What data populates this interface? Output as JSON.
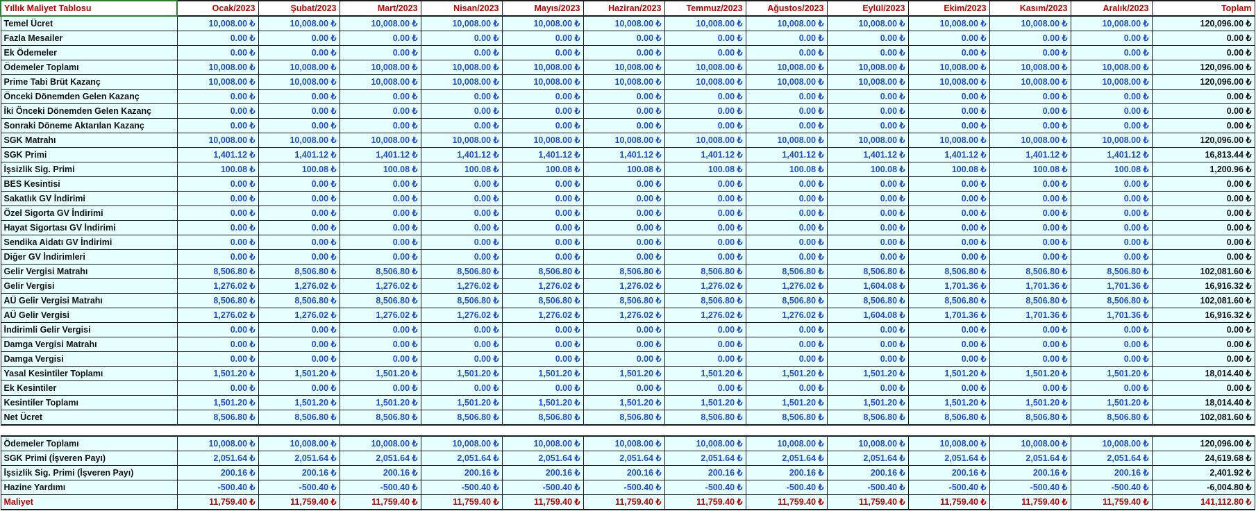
{
  "table": {
    "title": "Yıllık Maliyet Tablosu",
    "months": [
      "Ocak/2023",
      "Şubat/2023",
      "Mart/2023",
      "Nisan/2023",
      "Mayıs/2023",
      "Haziran/2023",
      "Temmuz/2023",
      "Ağustos/2023",
      "Eylül/2023",
      "Ekim/2023",
      "Kasım/2023",
      "Aralık/2023"
    ],
    "total_header": "Toplam",
    "rows": [
      {
        "label": "Temel Ücret",
        "values": [
          "10,008.00 ₺",
          "10,008.00 ₺",
          "10,008.00 ₺",
          "10,008.00 ₺",
          "10,008.00 ₺",
          "10,008.00 ₺",
          "10,008.00 ₺",
          "10,008.00 ₺",
          "10,008.00 ₺",
          "10,008.00 ₺",
          "10,008.00 ₺",
          "10,008.00 ₺"
        ],
        "total": "120,096.00 ₺"
      },
      {
        "label": "Fazla Mesailer",
        "values": [
          "0.00 ₺",
          "0.00 ₺",
          "0.00 ₺",
          "0.00 ₺",
          "0.00 ₺",
          "0.00 ₺",
          "0.00 ₺",
          "0.00 ₺",
          "0.00 ₺",
          "0.00 ₺",
          "0.00 ₺",
          "0.00 ₺"
        ],
        "total": "0.00 ₺"
      },
      {
        "label": "Ek Ödemeler",
        "values": [
          "0.00 ₺",
          "0.00 ₺",
          "0.00 ₺",
          "0.00 ₺",
          "0.00 ₺",
          "0.00 ₺",
          "0.00 ₺",
          "0.00 ₺",
          "0.00 ₺",
          "0.00 ₺",
          "0.00 ₺",
          "0.00 ₺"
        ],
        "total": "0.00 ₺"
      },
      {
        "label": "Ödemeler Toplamı",
        "values": [
          "10,008.00 ₺",
          "10,008.00 ₺",
          "10,008.00 ₺",
          "10,008.00 ₺",
          "10,008.00 ₺",
          "10,008.00 ₺",
          "10,008.00 ₺",
          "10,008.00 ₺",
          "10,008.00 ₺",
          "10,008.00 ₺",
          "10,008.00 ₺",
          "10,008.00 ₺"
        ],
        "total": "120,096.00 ₺"
      },
      {
        "label": "Prime Tabi Brüt Kazanç",
        "values": [
          "10,008.00 ₺",
          "10,008.00 ₺",
          "10,008.00 ₺",
          "10,008.00 ₺",
          "10,008.00 ₺",
          "10,008.00 ₺",
          "10,008.00 ₺",
          "10,008.00 ₺",
          "10,008.00 ₺",
          "10,008.00 ₺",
          "10,008.00 ₺",
          "10,008.00 ₺"
        ],
        "total": "120,096.00 ₺"
      },
      {
        "label": "Önceki Dönemden Gelen Kazanç",
        "values": [
          "0.00 ₺",
          "0.00 ₺",
          "0.00 ₺",
          "0.00 ₺",
          "0.00 ₺",
          "0.00 ₺",
          "0.00 ₺",
          "0.00 ₺",
          "0.00 ₺",
          "0.00 ₺",
          "0.00 ₺",
          "0.00 ₺"
        ],
        "total": "0.00 ₺"
      },
      {
        "label": "İki Önceki Dönemden Gelen Kazanç",
        "values": [
          "0.00 ₺",
          "0.00 ₺",
          "0.00 ₺",
          "0.00 ₺",
          "0.00 ₺",
          "0.00 ₺",
          "0.00 ₺",
          "0.00 ₺",
          "0.00 ₺",
          "0.00 ₺",
          "0.00 ₺",
          "0.00 ₺"
        ],
        "total": "0.00 ₺"
      },
      {
        "label": "Sonraki Döneme Aktarılan Kazanç",
        "values": [
          "0.00 ₺",
          "0.00 ₺",
          "0.00 ₺",
          "0.00 ₺",
          "0.00 ₺",
          "0.00 ₺",
          "0.00 ₺",
          "0.00 ₺",
          "0.00 ₺",
          "0.00 ₺",
          "0.00 ₺",
          "0.00 ₺"
        ],
        "total": "0.00 ₺"
      },
      {
        "label": "SGK Matrahı",
        "values": [
          "10,008.00 ₺",
          "10,008.00 ₺",
          "10,008.00 ₺",
          "10,008.00 ₺",
          "10,008.00 ₺",
          "10,008.00 ₺",
          "10,008.00 ₺",
          "10,008.00 ₺",
          "10,008.00 ₺",
          "10,008.00 ₺",
          "10,008.00 ₺",
          "10,008.00 ₺"
        ],
        "total": "120,096.00 ₺"
      },
      {
        "label": "SGK Primi",
        "values": [
          "1,401.12 ₺",
          "1,401.12 ₺",
          "1,401.12 ₺",
          "1,401.12 ₺",
          "1,401.12 ₺",
          "1,401.12 ₺",
          "1,401.12 ₺",
          "1,401.12 ₺",
          "1,401.12 ₺",
          "1,401.12 ₺",
          "1,401.12 ₺",
          "1,401.12 ₺"
        ],
        "total": "16,813.44 ₺"
      },
      {
        "label": "İşsizlik Sig. Primi",
        "values": [
          "100.08 ₺",
          "100.08 ₺",
          "100.08 ₺",
          "100.08 ₺",
          "100.08 ₺",
          "100.08 ₺",
          "100.08 ₺",
          "100.08 ₺",
          "100.08 ₺",
          "100.08 ₺",
          "100.08 ₺",
          "100.08 ₺"
        ],
        "total": "1,200.96 ₺"
      },
      {
        "label": "BES Kesintisi",
        "values": [
          "0.00 ₺",
          "0.00 ₺",
          "0.00 ₺",
          "0.00 ₺",
          "0.00 ₺",
          "0.00 ₺",
          "0.00 ₺",
          "0.00 ₺",
          "0.00 ₺",
          "0.00 ₺",
          "0.00 ₺",
          "0.00 ₺"
        ],
        "total": "0.00 ₺"
      },
      {
        "label": "Sakatlık GV İndirimi",
        "values": [
          "0.00 ₺",
          "0.00 ₺",
          "0.00 ₺",
          "0.00 ₺",
          "0.00 ₺",
          "0.00 ₺",
          "0.00 ₺",
          "0.00 ₺",
          "0.00 ₺",
          "0.00 ₺",
          "0.00 ₺",
          "0.00 ₺"
        ],
        "total": "0.00 ₺"
      },
      {
        "label": "Özel Sigorta GV İndirimi",
        "values": [
          "0.00 ₺",
          "0.00 ₺",
          "0.00 ₺",
          "0.00 ₺",
          "0.00 ₺",
          "0.00 ₺",
          "0.00 ₺",
          "0.00 ₺",
          "0.00 ₺",
          "0.00 ₺",
          "0.00 ₺",
          "0.00 ₺"
        ],
        "total": "0.00 ₺"
      },
      {
        "label": "Hayat Sigortası GV İndirimi",
        "values": [
          "0.00 ₺",
          "0.00 ₺",
          "0.00 ₺",
          "0.00 ₺",
          "0.00 ₺",
          "0.00 ₺",
          "0.00 ₺",
          "0.00 ₺",
          "0.00 ₺",
          "0.00 ₺",
          "0.00 ₺",
          "0.00 ₺"
        ],
        "total": "0.00 ₺"
      },
      {
        "label": "Sendika Aidatı GV İndirimi",
        "values": [
          "0.00 ₺",
          "0.00 ₺",
          "0.00 ₺",
          "0.00 ₺",
          "0.00 ₺",
          "0.00 ₺",
          "0.00 ₺",
          "0.00 ₺",
          "0.00 ₺",
          "0.00 ₺",
          "0.00 ₺",
          "0.00 ₺"
        ],
        "total": "0.00 ₺"
      },
      {
        "label": "Diğer GV İndirimleri",
        "values": [
          "0.00 ₺",
          "0.00 ₺",
          "0.00 ₺",
          "0.00 ₺",
          "0.00 ₺",
          "0.00 ₺",
          "0.00 ₺",
          "0.00 ₺",
          "0.00 ₺",
          "0.00 ₺",
          "0.00 ₺",
          "0.00 ₺"
        ],
        "total": "0.00 ₺"
      },
      {
        "label": "Gelir Vergisi Matrahı",
        "values": [
          "8,506.80 ₺",
          "8,506.80 ₺",
          "8,506.80 ₺",
          "8,506.80 ₺",
          "8,506.80 ₺",
          "8,506.80 ₺",
          "8,506.80 ₺",
          "8,506.80 ₺",
          "8,506.80 ₺",
          "8,506.80 ₺",
          "8,506.80 ₺",
          "8,506.80 ₺"
        ],
        "total": "102,081.60 ₺"
      },
      {
        "label": "Gelir Vergisi",
        "values": [
          "1,276.02 ₺",
          "1,276.02 ₺",
          "1,276.02 ₺",
          "1,276.02 ₺",
          "1,276.02 ₺",
          "1,276.02 ₺",
          "1,276.02 ₺",
          "1,276.02 ₺",
          "1,604.08 ₺",
          "1,701.36 ₺",
          "1,701.36 ₺",
          "1,701.36 ₺"
        ],
        "total": "16,916.32 ₺"
      },
      {
        "label": "AÜ Gelir Vergisi Matrahı",
        "values": [
          "8,506.80 ₺",
          "8,506.80 ₺",
          "8,506.80 ₺",
          "8,506.80 ₺",
          "8,506.80 ₺",
          "8,506.80 ₺",
          "8,506.80 ₺",
          "8,506.80 ₺",
          "8,506.80 ₺",
          "8,506.80 ₺",
          "8,506.80 ₺",
          "8,506.80 ₺"
        ],
        "total": "102,081.60 ₺"
      },
      {
        "label": "AÜ Gelir Vergisi",
        "values": [
          "1,276.02 ₺",
          "1,276.02 ₺",
          "1,276.02 ₺",
          "1,276.02 ₺",
          "1,276.02 ₺",
          "1,276.02 ₺",
          "1,276.02 ₺",
          "1,276.02 ₺",
          "1,604.08 ₺",
          "1,701.36 ₺",
          "1,701.36 ₺",
          "1,701.36 ₺"
        ],
        "total": "16,916.32 ₺"
      },
      {
        "label": "İndirimli Gelir Vergisi",
        "values": [
          "0.00 ₺",
          "0.00 ₺",
          "0.00 ₺",
          "0.00 ₺",
          "0.00 ₺",
          "0.00 ₺",
          "0.00 ₺",
          "0.00 ₺",
          "0.00 ₺",
          "0.00 ₺",
          "0.00 ₺",
          "0.00 ₺"
        ],
        "total": "0.00 ₺"
      },
      {
        "label": "Damga Vergisi Matrahı",
        "values": [
          "0.00 ₺",
          "0.00 ₺",
          "0.00 ₺",
          "0.00 ₺",
          "0.00 ₺",
          "0.00 ₺",
          "0.00 ₺",
          "0.00 ₺",
          "0.00 ₺",
          "0.00 ₺",
          "0.00 ₺",
          "0.00 ₺"
        ],
        "total": "0.00 ₺"
      },
      {
        "label": "Damga Vergisi",
        "values": [
          "0.00 ₺",
          "0.00 ₺",
          "0.00 ₺",
          "0.00 ₺",
          "0.00 ₺",
          "0.00 ₺",
          "0.00 ₺",
          "0.00 ₺",
          "0.00 ₺",
          "0.00 ₺",
          "0.00 ₺",
          "0.00 ₺"
        ],
        "total": "0.00 ₺"
      },
      {
        "label": "Yasal Kesintiler Toplamı",
        "values": [
          "1,501.20 ₺",
          "1,501.20 ₺",
          "1,501.20 ₺",
          "1,501.20 ₺",
          "1,501.20 ₺",
          "1,501.20 ₺",
          "1,501.20 ₺",
          "1,501.20 ₺",
          "1,501.20 ₺",
          "1,501.20 ₺",
          "1,501.20 ₺",
          "1,501.20 ₺"
        ],
        "total": "18,014.40 ₺"
      },
      {
        "label": "Ek Kesintiler",
        "values": [
          "0.00 ₺",
          "0.00 ₺",
          "0.00 ₺",
          "0.00 ₺",
          "0.00 ₺",
          "0.00 ₺",
          "0.00 ₺",
          "0.00 ₺",
          "0.00 ₺",
          "0.00 ₺",
          "0.00 ₺",
          "0.00 ₺"
        ],
        "total": "0.00 ₺"
      },
      {
        "label": "Kesintiler Toplamı",
        "values": [
          "1,501.20 ₺",
          "1,501.20 ₺",
          "1,501.20 ₺",
          "1,501.20 ₺",
          "1,501.20 ₺",
          "1,501.20 ₺",
          "1,501.20 ₺",
          "1,501.20 ₺",
          "1,501.20 ₺",
          "1,501.20 ₺",
          "1,501.20 ₺",
          "1,501.20 ₺"
        ],
        "total": "18,014.40 ₺"
      },
      {
        "label": "Net Ücret",
        "values": [
          "8,506.80 ₺",
          "8,506.80 ₺",
          "8,506.80 ₺",
          "8,506.80 ₺",
          "8,506.80 ₺",
          "8,506.80 ₺",
          "8,506.80 ₺",
          "8,506.80 ₺",
          "8,506.80 ₺",
          "8,506.80 ₺",
          "8,506.80 ₺",
          "8,506.80 ₺"
        ],
        "total": "102,081.60 ₺"
      }
    ],
    "cost_rows": [
      {
        "label": "Ödemeler Toplamı",
        "values": [
          "10,008.00 ₺",
          "10,008.00 ₺",
          "10,008.00 ₺",
          "10,008.00 ₺",
          "10,008.00 ₺",
          "10,008.00 ₺",
          "10,008.00 ₺",
          "10,008.00 ₺",
          "10,008.00 ₺",
          "10,008.00 ₺",
          "10,008.00 ₺",
          "10,008.00 ₺"
        ],
        "total": "120,096.00 ₺"
      },
      {
        "label": "SGK Primi (İşveren Payı)",
        "values": [
          "2,051.64 ₺",
          "2,051.64 ₺",
          "2,051.64 ₺",
          "2,051.64 ₺",
          "2,051.64 ₺",
          "2,051.64 ₺",
          "2,051.64 ₺",
          "2,051.64 ₺",
          "2,051.64 ₺",
          "2,051.64 ₺",
          "2,051.64 ₺",
          "2,051.64 ₺"
        ],
        "total": "24,619.68 ₺"
      },
      {
        "label": "İşsizlik Sig. Primi (İşveren Payı)",
        "values": [
          "200.16 ₺",
          "200.16 ₺",
          "200.16 ₺",
          "200.16 ₺",
          "200.16 ₺",
          "200.16 ₺",
          "200.16 ₺",
          "200.16 ₺",
          "200.16 ₺",
          "200.16 ₺",
          "200.16 ₺",
          "200.16 ₺"
        ],
        "total": "2,401.92 ₺"
      },
      {
        "label": "Hazine Yardımı",
        "values": [
          "-500.40 ₺",
          "-500.40 ₺",
          "-500.40 ₺",
          "-500.40 ₺",
          "-500.40 ₺",
          "-500.40 ₺",
          "-500.40 ₺",
          "-500.40 ₺",
          "-500.40 ₺",
          "-500.40 ₺",
          "-500.40 ₺",
          "-500.40 ₺"
        ],
        "total": "-6,004.80 ₺"
      },
      {
        "label": "Maliyet",
        "values": [
          "11,759.40 ₺",
          "11,759.40 ₺",
          "11,759.40 ₺",
          "11,759.40 ₺",
          "11,759.40 ₺",
          "11,759.40 ₺",
          "11,759.40 ₺",
          "11,759.40 ₺",
          "11,759.40 ₺",
          "11,759.40 ₺",
          "11,759.40 ₺",
          "11,759.40 ₺"
        ],
        "total": "141,112.80 ₺",
        "highlight": true
      }
    ]
  },
  "colors": {
    "header_text": "#c00000",
    "value_text": "#1f4fc8",
    "cell_background": "#e6ffff",
    "selected_cell_border": "#2e7d32"
  }
}
